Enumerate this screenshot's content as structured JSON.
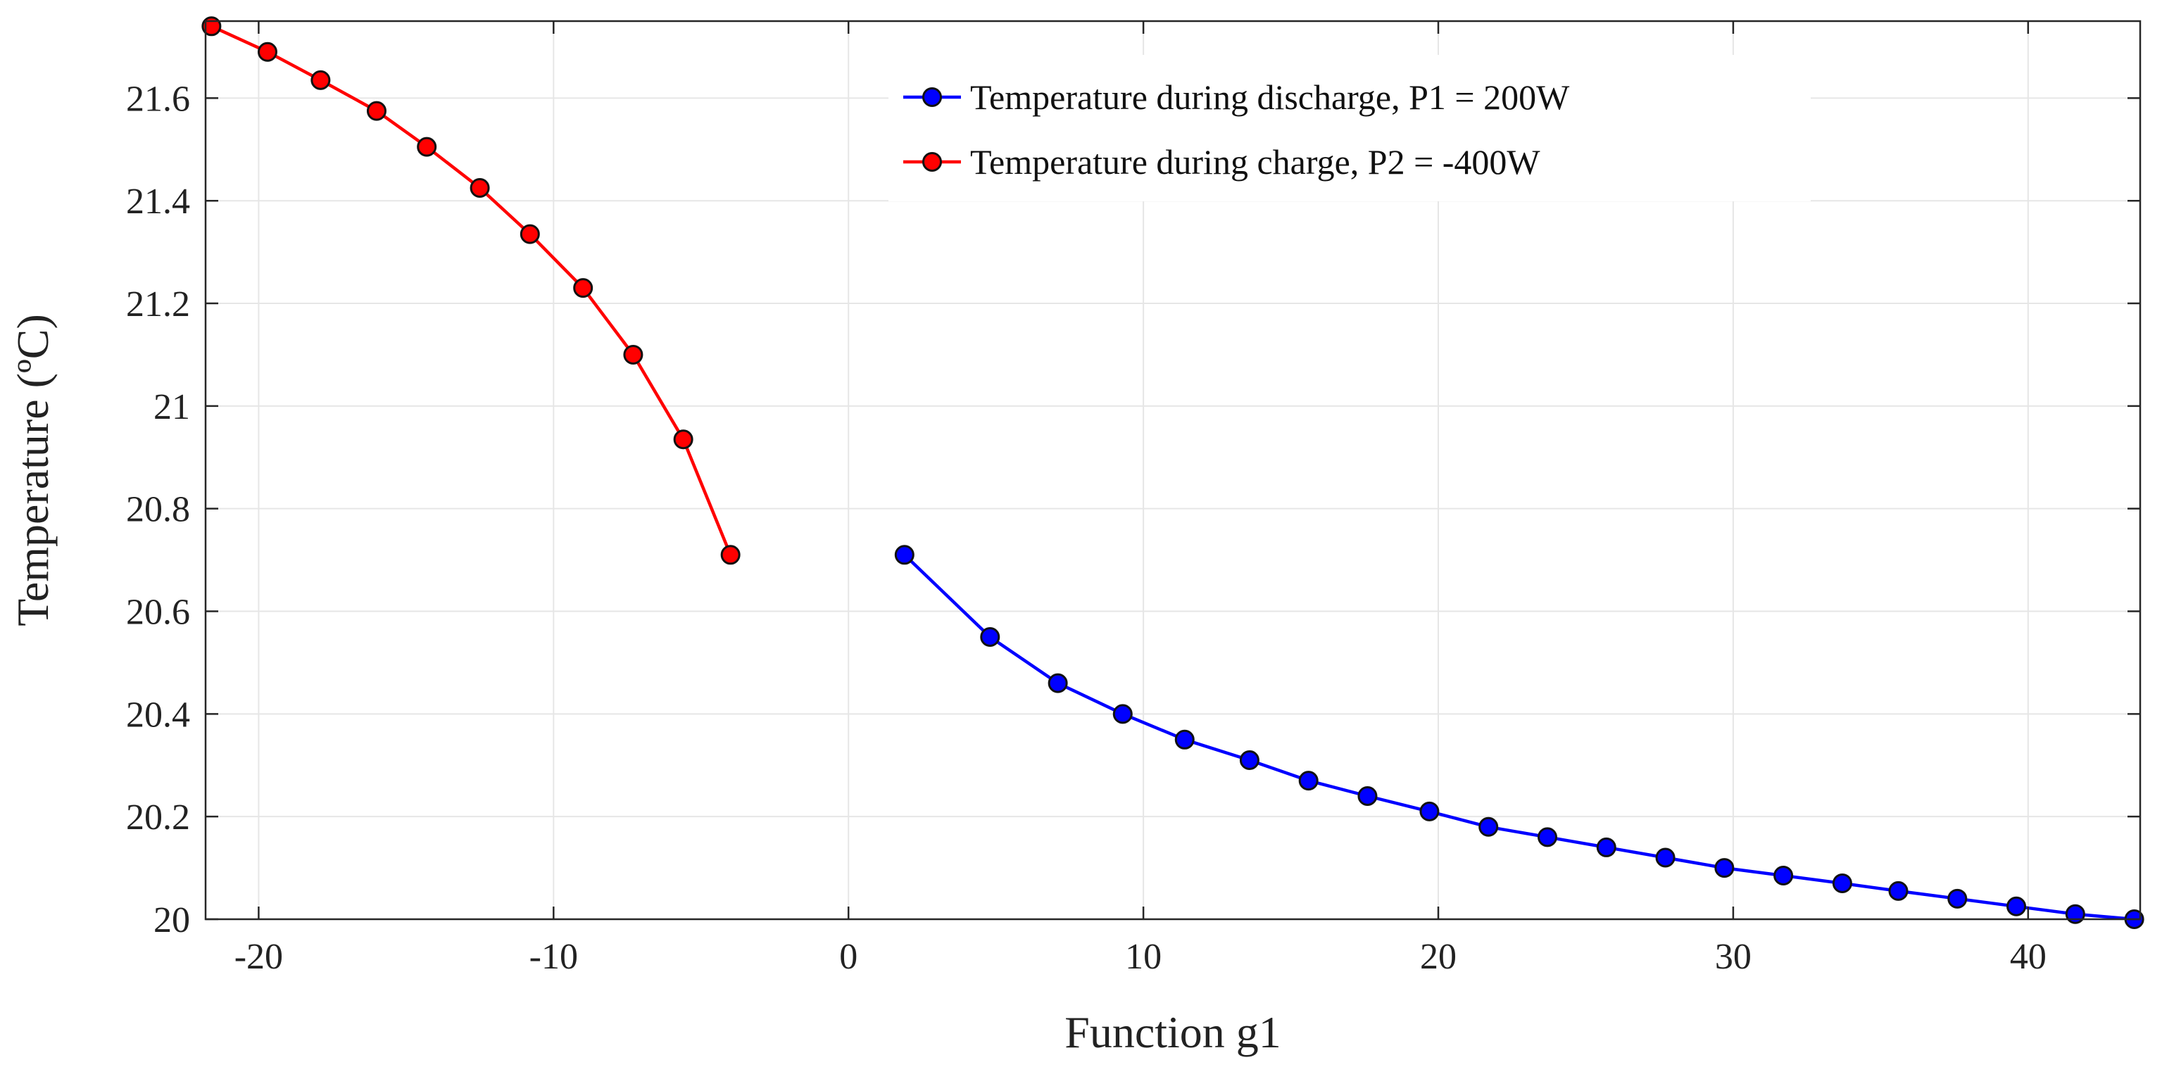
{
  "chart_data": {
    "type": "line",
    "title": "",
    "xlabel": "Function g1",
    "ylabel": "Temperature (ºC)",
    "xlim": [
      -21.8,
      43.8
    ],
    "ylim": [
      20,
      21.75
    ],
    "xticks": [
      -20,
      -10,
      0,
      10,
      20,
      30,
      40
    ],
    "xtick_labels": [
      "-20",
      "-10",
      "0",
      "10",
      "20",
      "30",
      "40"
    ],
    "yticks": [
      20,
      20.2,
      20.4,
      20.6,
      20.8,
      21,
      21.2,
      21.4,
      21.6
    ],
    "ytick_labels": [
      "20",
      "20.2",
      "20.4",
      "20.6",
      "20.8",
      "21",
      "21.2",
      "21.4",
      "21.6"
    ],
    "grid": true,
    "legend_position": "top-right",
    "series": [
      {
        "name": "Temperature during discharge, P1 = 200W",
        "color": "#0000ff",
        "marker": "circle",
        "x": [
          1.9,
          4.8,
          7.1,
          9.3,
          11.4,
          13.6,
          15.6,
          17.6,
          19.7,
          21.7,
          23.7,
          25.7,
          27.7,
          29.7,
          31.7,
          33.7,
          35.6,
          37.6,
          39.6,
          41.6,
          43.6
        ],
        "y": [
          20.71,
          20.55,
          20.46,
          20.4,
          20.35,
          20.31,
          20.27,
          20.24,
          20.21,
          20.18,
          20.16,
          20.14,
          20.12,
          20.1,
          20.085,
          20.07,
          20.055,
          20.04,
          20.025,
          20.01,
          20.0
        ]
      },
      {
        "name": "Temperature during charge, P2 = -400W",
        "color": "#ff0000",
        "marker": "circle",
        "x": [
          -21.6,
          -19.7,
          -17.9,
          -16.0,
          -14.3,
          -12.5,
          -10.8,
          -9.0,
          -7.3,
          -5.6,
          -4.0
        ],
        "y": [
          21.74,
          21.69,
          21.635,
          21.575,
          21.505,
          21.425,
          21.335,
          21.23,
          21.1,
          20.935,
          20.71
        ]
      }
    ]
  }
}
